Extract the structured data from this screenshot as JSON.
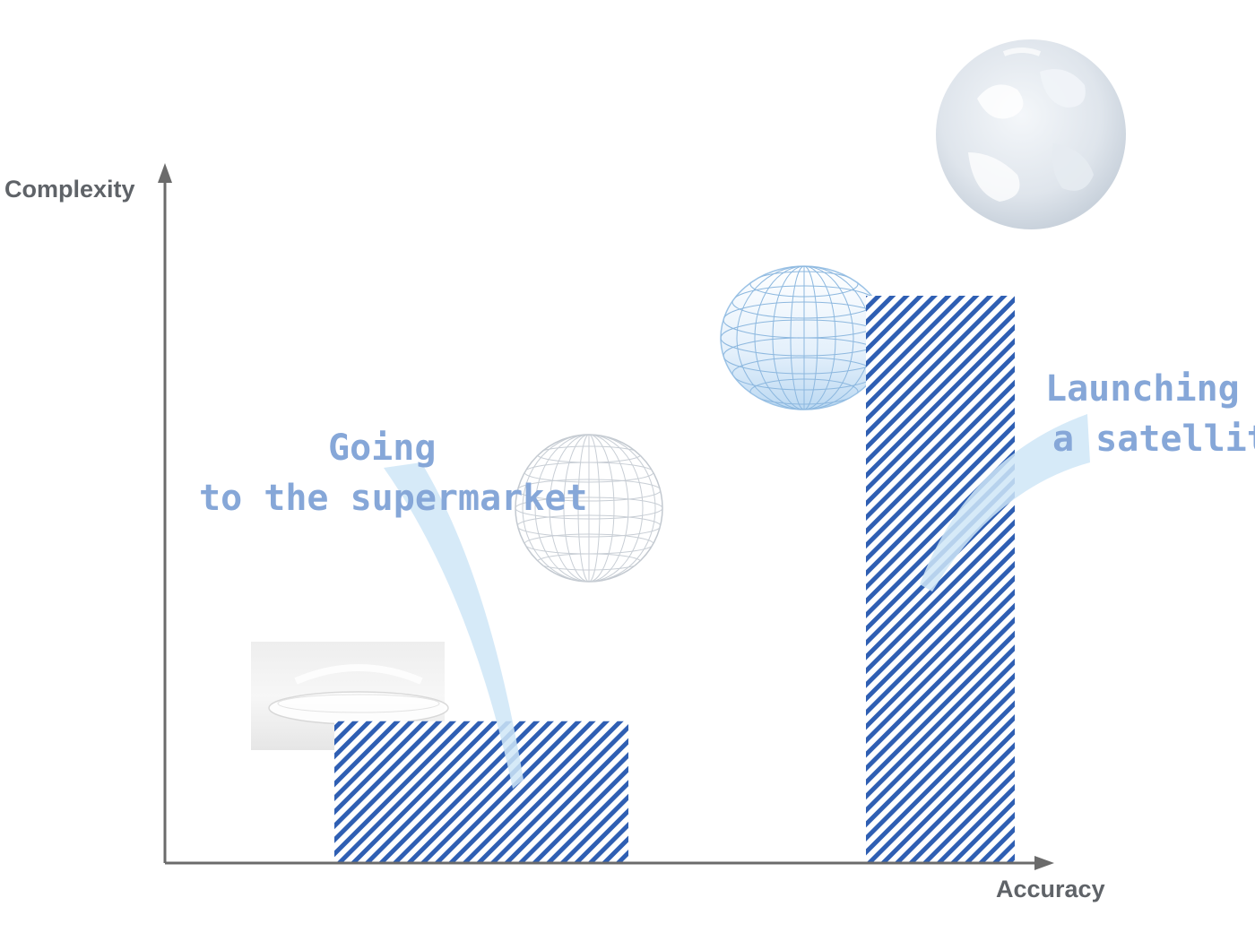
{
  "axes": {
    "y_label": "Complexity",
    "x_label": "Accuracy"
  },
  "colors": {
    "axis": "#6b6b6b",
    "bar_stripe": "#2f5fb3",
    "annotation_text": "#86a7d8",
    "callout": "#cfe6f7"
  },
  "illustrations": [
    "flat-disk-image",
    "grid-sphere-icon",
    "ellipsoid-icon",
    "earth-icon"
  ],
  "bars": [
    {
      "name": "supermarket-bar",
      "relative_complexity": 0.25
    },
    {
      "name": "satellite-bar",
      "relative_complexity": 1.0
    }
  ],
  "annotations": {
    "supermarket": {
      "line1": "Going",
      "line2": "to the supermarket"
    },
    "satellite": {
      "line1": "Launching",
      "line2": "a satellite"
    }
  }
}
